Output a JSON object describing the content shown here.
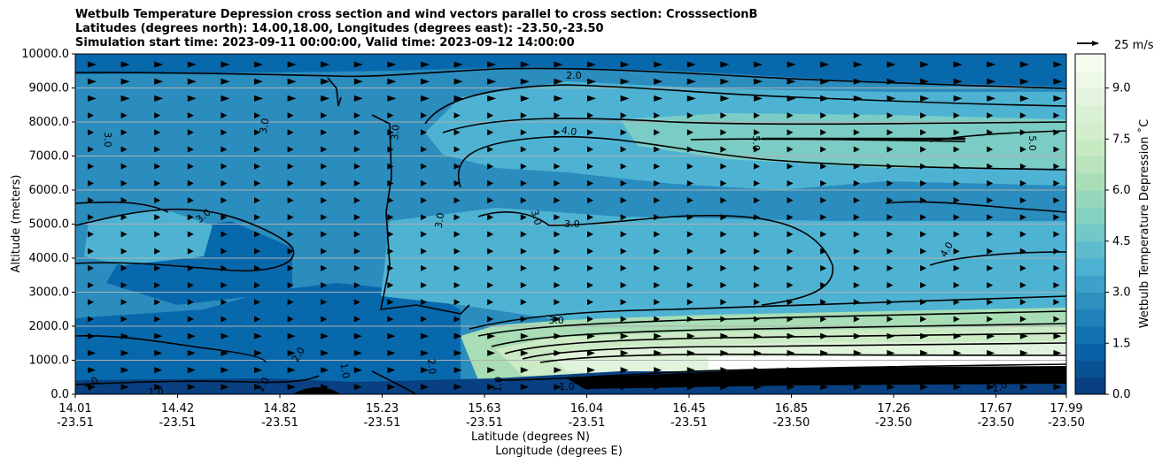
{
  "chart_data": {
    "type": "heatmap",
    "title_lines": [
      "Wetbulb Temperature Depression cross section and wind vectors parallel to cross section: CrosssectionB",
      "Latitudes (degrees north): 14.00,18.00, Longitudes (degrees east): -23.50,-23.50",
      "Simulation start time: 2023-09-11 00:00:00, Valid time: 2023-09-12 14:00:00"
    ],
    "ylabel": "Altitude (meters)",
    "xlabel_lines": [
      "Latitude (degrees N)",
      "Longitude (degrees E)"
    ],
    "ylim": [
      0,
      10000
    ],
    "y_ticks": [
      "0.0",
      "1000.0",
      "2000.0",
      "3000.0",
      "4000.0",
      "5000.0",
      "6000.0",
      "7000.0",
      "8000.0",
      "9000.0",
      "10000.0"
    ],
    "x_ticks": [
      {
        "lat": "14.01",
        "lon": "-23.51"
      },
      {
        "lat": "14.42",
        "lon": "-23.51"
      },
      {
        "lat": "14.82",
        "lon": "-23.51"
      },
      {
        "lat": "15.23",
        "lon": "-23.51"
      },
      {
        "lat": "15.63",
        "lon": "-23.51"
      },
      {
        "lat": "16.04",
        "lon": "-23.51"
      },
      {
        "lat": "16.45",
        "lon": "-23.51"
      },
      {
        "lat": "16.85",
        "lon": "-23.50"
      },
      {
        "lat": "17.26",
        "lon": "-23.50"
      },
      {
        "lat": "17.67",
        "lon": "-23.50"
      },
      {
        "lat": "17.99",
        "lon": "-23.50"
      }
    ],
    "grid": "horizontal",
    "colorbar": {
      "label": "Wetbulb Temperature Depression ˚C",
      "ticks": [
        "0.0",
        "1.5",
        "3.0",
        "4.5",
        "6.0",
        "7.5",
        "9.0"
      ],
      "range": [
        0,
        10
      ],
      "colors": [
        "#084081",
        "#0868ac",
        "#2b8cbe",
        "#4eb3d3",
        "#7bccc4",
        "#a8ddb5",
        "#ccebc5",
        "#e0f3db",
        "#f7fcf0"
      ]
    },
    "wind_key": "25 m/s",
    "contour_labels": [
      "1.0",
      "1.0",
      "2.0",
      "2.0",
      "3.0",
      "3.0",
      "3.0",
      "3.0",
      "3.0",
      "3.0",
      "3.0",
      "4.0",
      "4.0",
      "5.0",
      "5.0",
      "2.0",
      "1.0",
      "1.0",
      "1.0",
      "2.0",
      "3.0",
      "1.0"
    ]
  }
}
